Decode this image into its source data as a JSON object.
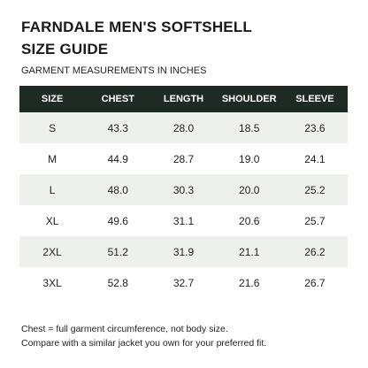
{
  "header": {
    "title_lines": [
      "FARNDALE MEN'S SOFTSHELL",
      "SIZE GUIDE"
    ],
    "subtitle": "GARMENT MEASUREMENTS IN INCHES"
  },
  "table": {
    "columns": [
      "SIZE",
      "CHEST",
      "LENGTH",
      "SHOULDER",
      "SLEEVE"
    ],
    "rows": [
      [
        "S",
        "43.3",
        "28.0",
        "18.5",
        "23.6"
      ],
      [
        "M",
        "44.9",
        "28.7",
        "19.0",
        "24.1"
      ],
      [
        "L",
        "48.0",
        "30.3",
        "20.0",
        "25.2"
      ],
      [
        "XL",
        "49.6",
        "31.1",
        "20.6",
        "25.7"
      ],
      [
        "2XL",
        "51.2",
        "31.9",
        "21.1",
        "26.2"
      ],
      [
        "3XL",
        "52.8",
        "32.7",
        "21.6",
        "26.7"
      ]
    ]
  },
  "notes": [
    "Chest = full garment circumference, not body size.",
    "Compare with a similar jacket you own for your preferred fit."
  ]
}
